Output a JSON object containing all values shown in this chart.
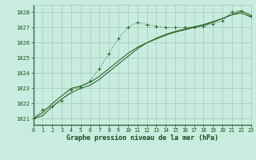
{
  "x": [
    0,
    1,
    2,
    3,
    4,
    5,
    6,
    7,
    8,
    9,
    10,
    11,
    12,
    13,
    14,
    15,
    16,
    17,
    18,
    19,
    20,
    21,
    22,
    23
  ],
  "line1_marked": [
    1021.0,
    1021.6,
    1021.8,
    1022.2,
    1022.9,
    1023.1,
    1023.5,
    1024.3,
    1025.3,
    1026.3,
    1027.0,
    1027.35,
    1027.2,
    1027.1,
    1027.0,
    1027.0,
    1027.0,
    1027.05,
    1027.1,
    1027.25,
    1027.45,
    1028.05,
    1028.1,
    1027.75
  ],
  "line2_smooth": [
    1021.0,
    1021.2,
    1021.8,
    1022.3,
    1022.7,
    1023.0,
    1023.2,
    1023.6,
    1024.1,
    1024.6,
    1025.1,
    1025.6,
    1026.0,
    1026.3,
    1026.55,
    1026.75,
    1026.9,
    1027.05,
    1027.2,
    1027.4,
    1027.6,
    1027.85,
    1028.1,
    1027.8
  ],
  "line3_smooth": [
    1021.0,
    1021.4,
    1022.0,
    1022.5,
    1023.0,
    1023.15,
    1023.4,
    1023.8,
    1024.3,
    1024.8,
    1025.3,
    1025.7,
    1026.0,
    1026.25,
    1026.5,
    1026.7,
    1026.85,
    1027.0,
    1027.15,
    1027.35,
    1027.6,
    1027.85,
    1027.95,
    1027.7
  ],
  "ylim": [
    1020.6,
    1028.5
  ],
  "yticks": [
    1021,
    1022,
    1023,
    1024,
    1025,
    1026,
    1027,
    1028
  ],
  "xlim": [
    0,
    23
  ],
  "xticks": [
    0,
    1,
    2,
    3,
    4,
    5,
    6,
    7,
    8,
    9,
    10,
    11,
    12,
    13,
    14,
    15,
    16,
    17,
    18,
    19,
    20,
    21,
    22,
    23
  ],
  "line_color": "#2d6a2d",
  "bg_color": "#c8ede0",
  "grid_color": "#aacfbe",
  "xlabel": "Graphe pression niveau de la mer (hPa)",
  "xlabel_color": "#1a4a1a"
}
